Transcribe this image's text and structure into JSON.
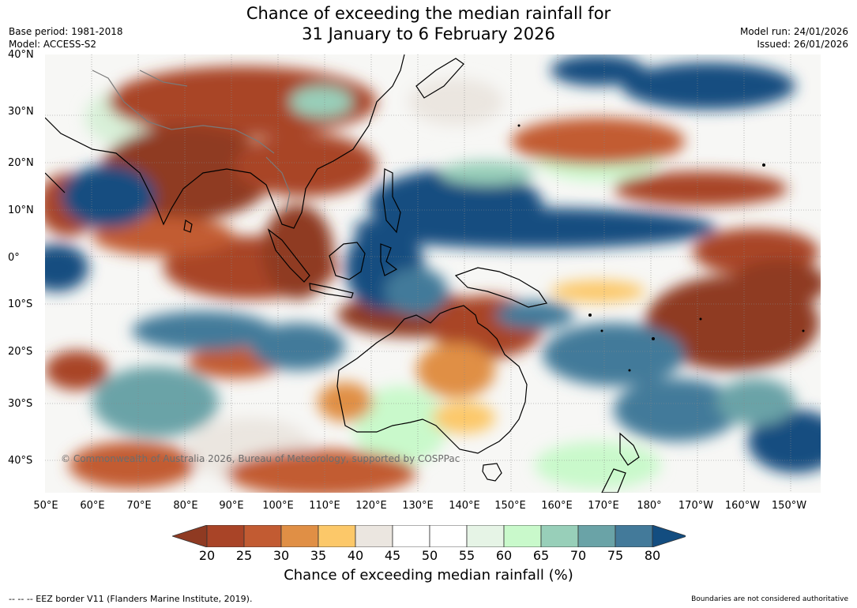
{
  "title": {
    "line1": "Chance of exceeding the median rainfall for",
    "line2": "31 January to 6 February 2026"
  },
  "meta_left": {
    "base_period": "Base period: 1981-2018",
    "model": "Model: ACCESS-S2"
  },
  "meta_right": {
    "model_run": "Model run: 24/01/2026",
    "issued": "Issued: 26/01/2026"
  },
  "map": {
    "lat_labels": [
      "40°N",
      "30°N",
      "20°N",
      "10°N",
      "0°",
      "10°S",
      "20°S",
      "30°S",
      "40°S"
    ],
    "lon_labels": [
      "50°E",
      "60°E",
      "70°E",
      "80°E",
      "90°E",
      "100°E",
      "110°E",
      "120°E",
      "130°E",
      "140°E",
      "150°E",
      "160°E",
      "170°E",
      "180°",
      "170°W",
      "160°W",
      "150°W"
    ],
    "copyright": "© Commonwealth of Australia 2026, Bureau of Meteorology, supported by COSPPac"
  },
  "colorbar": {
    "ticks": [
      "20",
      "25",
      "30",
      "35",
      "40",
      "45",
      "50",
      "55",
      "60",
      "65",
      "70",
      "75",
      "80"
    ],
    "colors": [
      "#8f3a22",
      "#a94427",
      "#c25b32",
      "#e08f45",
      "#fcc869",
      "#ebe6e0",
      "#ffffff",
      "#ffffff",
      "#e6f4e6",
      "#c9f9cb",
      "#98cfb9",
      "#6aa3a7",
      "#437a9a",
      "#134d80"
    ],
    "label": "Chance of exceeding median rainfall (%)"
  },
  "footer": {
    "left": "-- -- -- EEZ border V11 (Flanders Marine Institute, 2019).",
    "right": "Boundaries are not considered authoritative"
  }
}
